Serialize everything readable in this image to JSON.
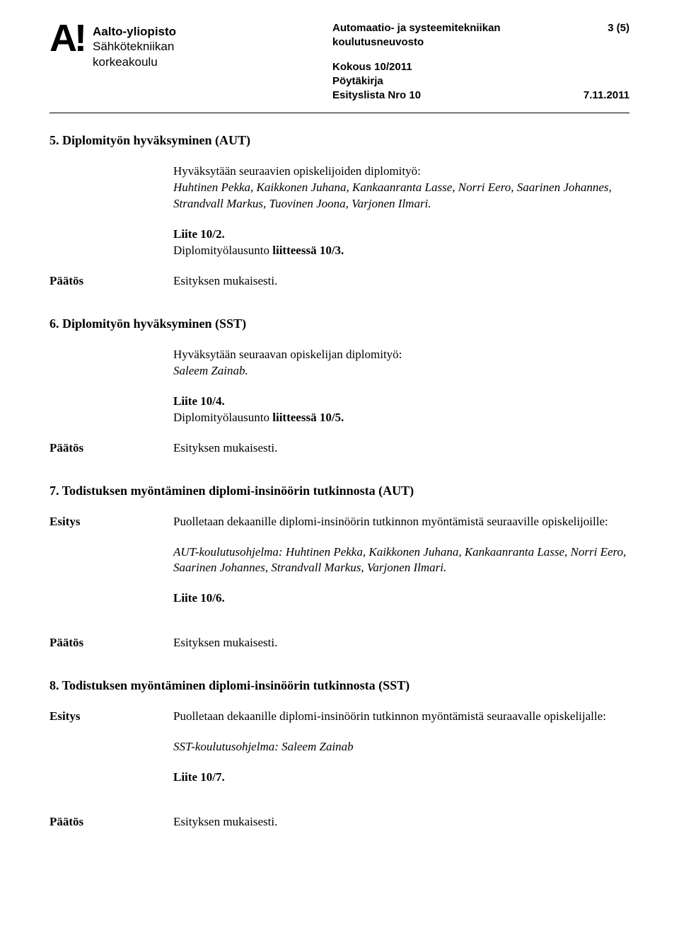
{
  "header": {
    "logo_mark": "A!",
    "logo_line1": "Aalto-yliopisto",
    "logo_line2": "Sähkötekniikan",
    "logo_line3": "korkeakoulu",
    "dept_line1": "Automaatio- ja systeemitekniikan",
    "dept_line2": "koulutusneuvosto",
    "page_num": "3 (5)",
    "meeting": "Kokous 10/2011",
    "minutes": "Pöytäkirja",
    "agenda": "Esityslista Nro 10",
    "date": "7.11.2011"
  },
  "labels": {
    "paatos": "Päätös",
    "esitys": "Esitys",
    "esityksen_mukaisesti": "Esityksen mukaisesti."
  },
  "s5": {
    "heading": "5. Diplomityön hyväksyminen (AUT)",
    "intro": "Hyväksytään seuraavien opiskelijoiden diplomityö:",
    "names": "Huhtinen Pekka, Kaikkonen Juhana, Kankaanranta Lasse, Norri Eero, Saarinen Johannes, Strandvall Markus, Tuovinen Joona, Varjonen Ilmari.",
    "liite": "Liite 10/2.",
    "lausunto_pre": "Diplomityölausunto ",
    "lausunto_bold": "liitteessä 10/3."
  },
  "s6": {
    "heading": "6. Diplomityön hyväksyminen (SST)",
    "intro": "Hyväksytään seuraavan opiskelijan diplomityö:",
    "names": "Saleem Zainab.",
    "liite": "Liite 10/4.",
    "lausunto_pre": "Diplomityölausunto ",
    "lausunto_bold": "liitteessä 10/5."
  },
  "s7": {
    "heading": "7. Todistuksen myöntäminen diplomi-insinöörin tutkinnosta (AUT)",
    "esitys_text": "Puolletaan dekaanille diplomi-insinöörin tutkinnon myöntämistä seuraaville opiskelijoille:",
    "program_pre": "AUT-koulutusohjelma:  ",
    "program_names": "Huhtinen Pekka, Kaikkonen Juhana, Kankaanranta Lasse, Norri Eero, Saarinen Johannes, Strandvall Markus, Varjonen Ilmari.",
    "liite": "Liite 10/6."
  },
  "s8": {
    "heading": "8. Todistuksen myöntäminen diplomi-insinöörin tutkinnosta (SST)",
    "esitys_text": "Puolletaan dekaanille diplomi-insinöörin tutkinnon myöntämistä seuraavalle opiskelijalle:",
    "program_pre": "SST-koulutusohjelma:  ",
    "program_names": "Saleem Zainab",
    "liite": "Liite 10/7."
  }
}
